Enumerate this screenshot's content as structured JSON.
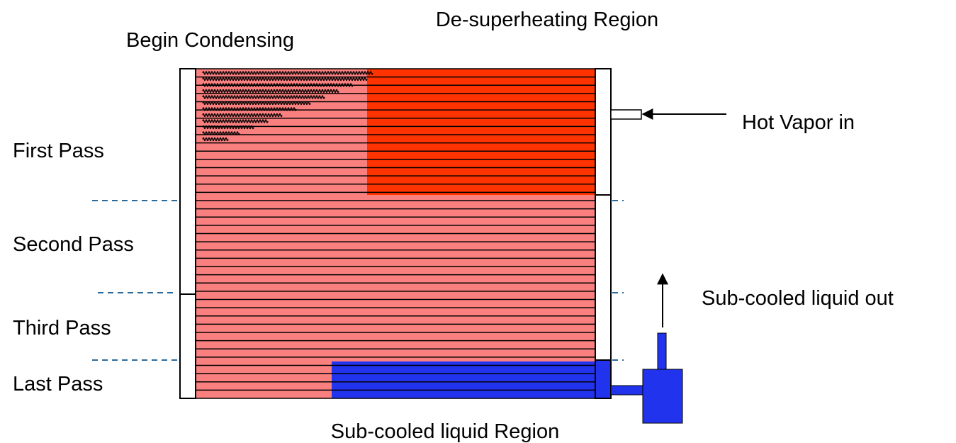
{
  "labels": {
    "desuperheating": "De-superheating Region",
    "begin_condensing": "Begin Condensing",
    "hot_vapor_in": "Hot Vapor in",
    "first_pass": "First Pass",
    "second_pass": "Second Pass",
    "third_pass": "Third Pass",
    "last_pass": "Last Pass",
    "subcooled_out": "Sub-cooled liquid out",
    "subcooled_region": "Sub-cooled liquid Region"
  }
}
